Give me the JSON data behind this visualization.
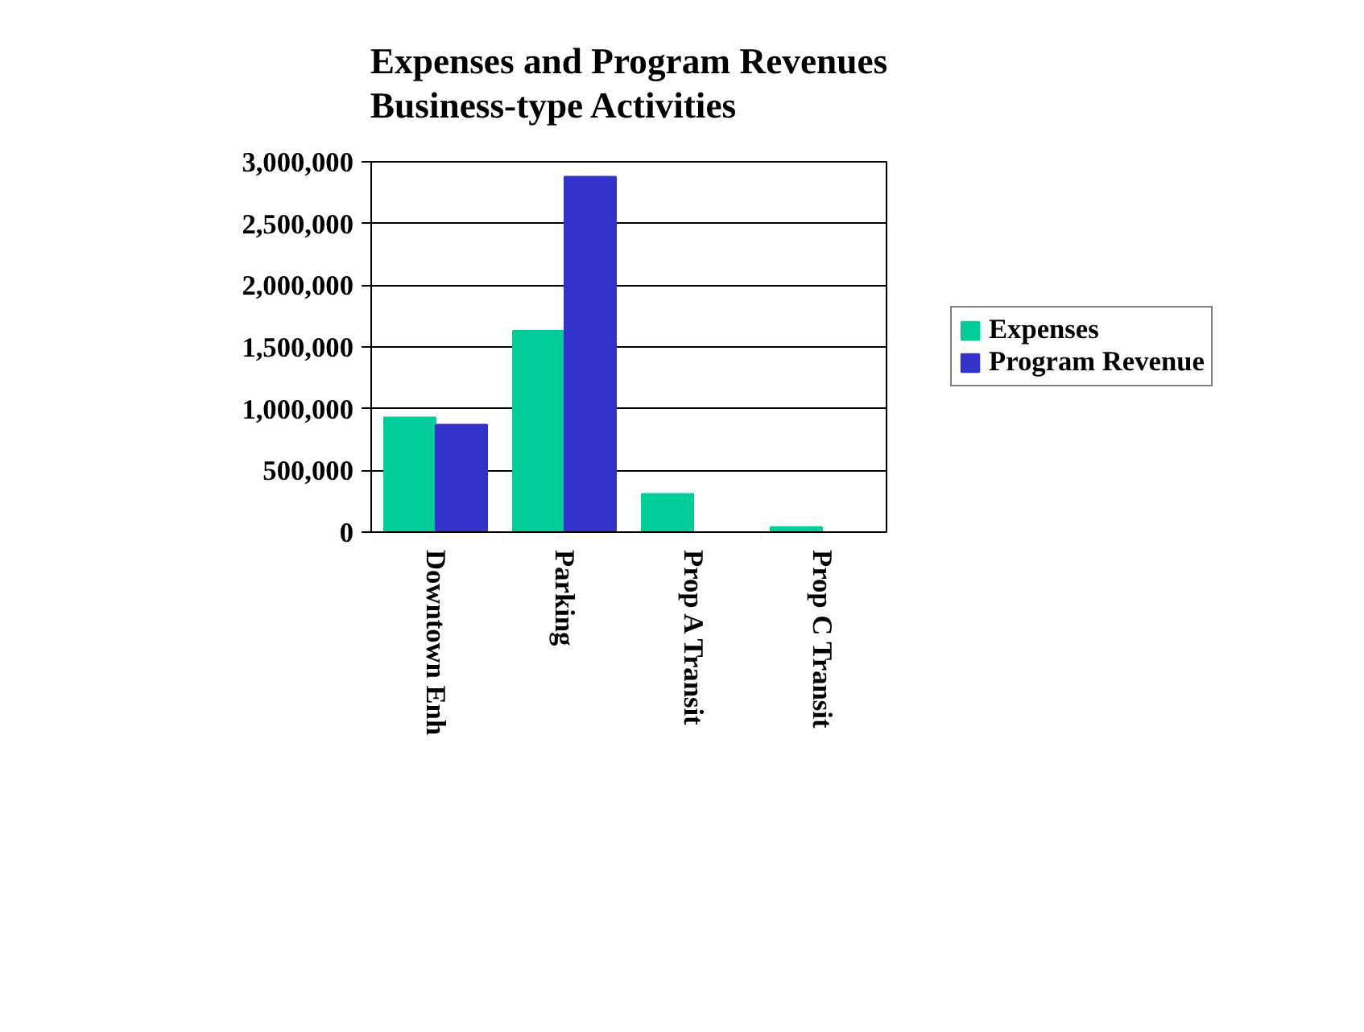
{
  "chart_data": {
    "type": "bar",
    "title": "Expenses and Program Revenues\nBusiness-type Activities",
    "categories": [
      "Downtown Enh",
      "Parking",
      "Prop A Transit",
      "Prop C Transit"
    ],
    "series": [
      {
        "name": "Expenses",
        "color": "#00cc99",
        "values": [
          930000,
          1630000,
          310000,
          40000
        ]
      },
      {
        "name": "Program Revenue",
        "color": "#3333cc",
        "values": [
          870000,
          2880000,
          0,
          0
        ]
      }
    ],
    "ylim": [
      0,
      3000000
    ],
    "yticks": [
      {
        "value": 0,
        "label": "0"
      },
      {
        "value": 500000,
        "label": "500,000"
      },
      {
        "value": 1000000,
        "label": "1,000,000"
      },
      {
        "value": 1500000,
        "label": "1,500,000"
      },
      {
        "value": 2000000,
        "label": "2,000,000"
      },
      {
        "value": 2500000,
        "label": "2,500,000"
      },
      {
        "value": 3000000,
        "label": "3,000,000"
      }
    ],
    "grid": "y",
    "legend": "right"
  }
}
